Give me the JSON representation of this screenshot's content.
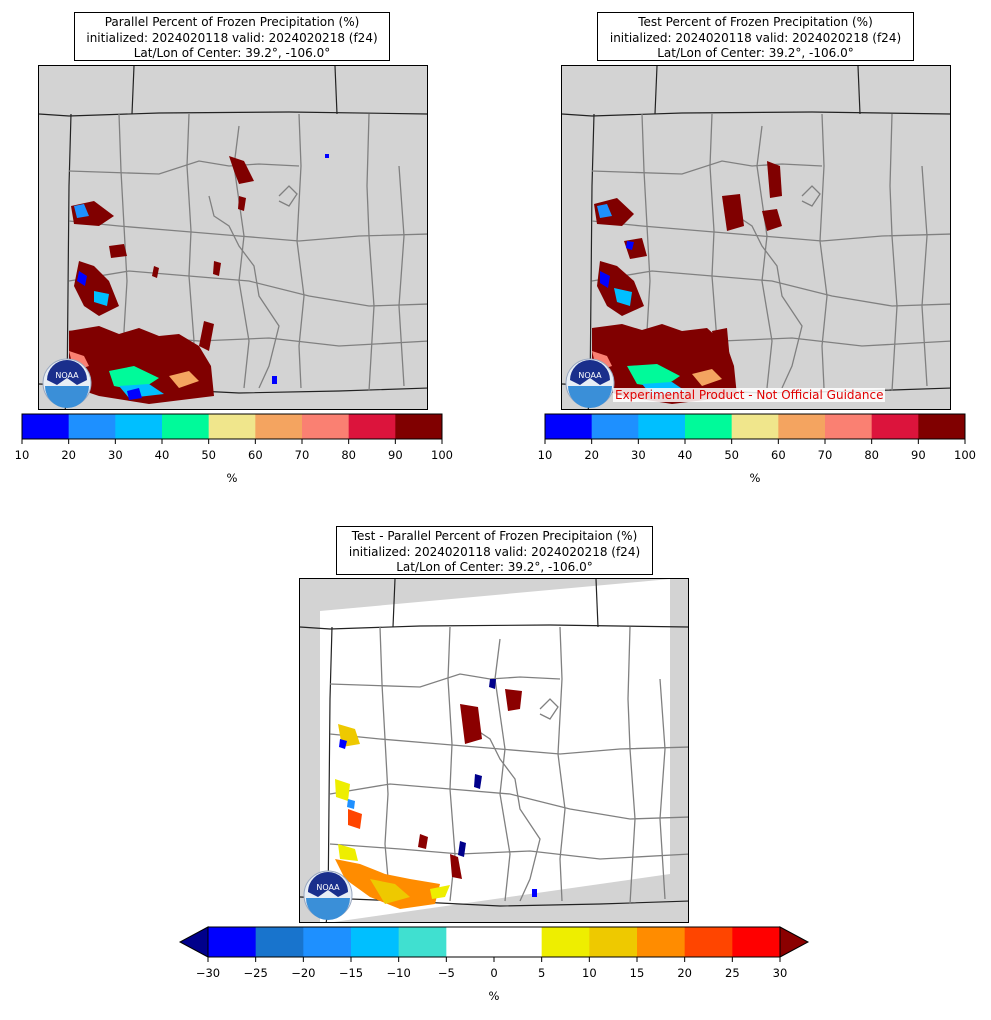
{
  "panels": {
    "parallel": {
      "title_line1": "Parallel Percent of Frozen Precipitation (%)",
      "title_line2": "initialized: 2024020118 valid: 2024020218 (f24)",
      "title_line3": "Lat/Lon of Center: 39.2°, -106.0°"
    },
    "test": {
      "title_line1": "Test Percent of Frozen Precipitation (%)",
      "title_line2": "initialized: 2024020118 valid: 2024020218 (f24)",
      "title_line3": "Lat/Lon of Center: 39.2°, -106.0°",
      "watermark": "Experimental Product - Not Official Guidance"
    },
    "diff": {
      "title_line1": "Test - Parallel Percent of Frozen Precipitaion (%)",
      "title_line2": "initialized: 2024020118 valid: 2024020218 (f24)",
      "title_line3": "Lat/Lon of Center: 39.2°, -106.0°"
    }
  },
  "logo_text": "NOAA",
  "colorbars": {
    "percent": {
      "unit": "%",
      "ticks": [
        "10",
        "20",
        "30",
        "40",
        "50",
        "60",
        "70",
        "80",
        "90",
        "100"
      ],
      "colors": [
        "#0000ff",
        "#1e90ff",
        "#00bfff",
        "#00fa9a",
        "#f0e68c",
        "#f4a460",
        "#fa8072",
        "#dc143c",
        "#800000"
      ]
    },
    "diff": {
      "unit": "%",
      "ticks": [
        "−30",
        "−25",
        "−20",
        "−15",
        "−10",
        "−5",
        "0",
        "5",
        "10",
        "15",
        "20",
        "25",
        "30"
      ],
      "colors": [
        "#0000ff",
        "#1874cd",
        "#1e90ff",
        "#00bfff",
        "#40e0d0",
        "#ffffff",
        "#ffffff",
        "#eeee00",
        "#eec900",
        "#ff8c00",
        "#ff4500",
        "#ff0000"
      ],
      "under_color": "#00008b",
      "over_color": "#8b0000"
    }
  }
}
